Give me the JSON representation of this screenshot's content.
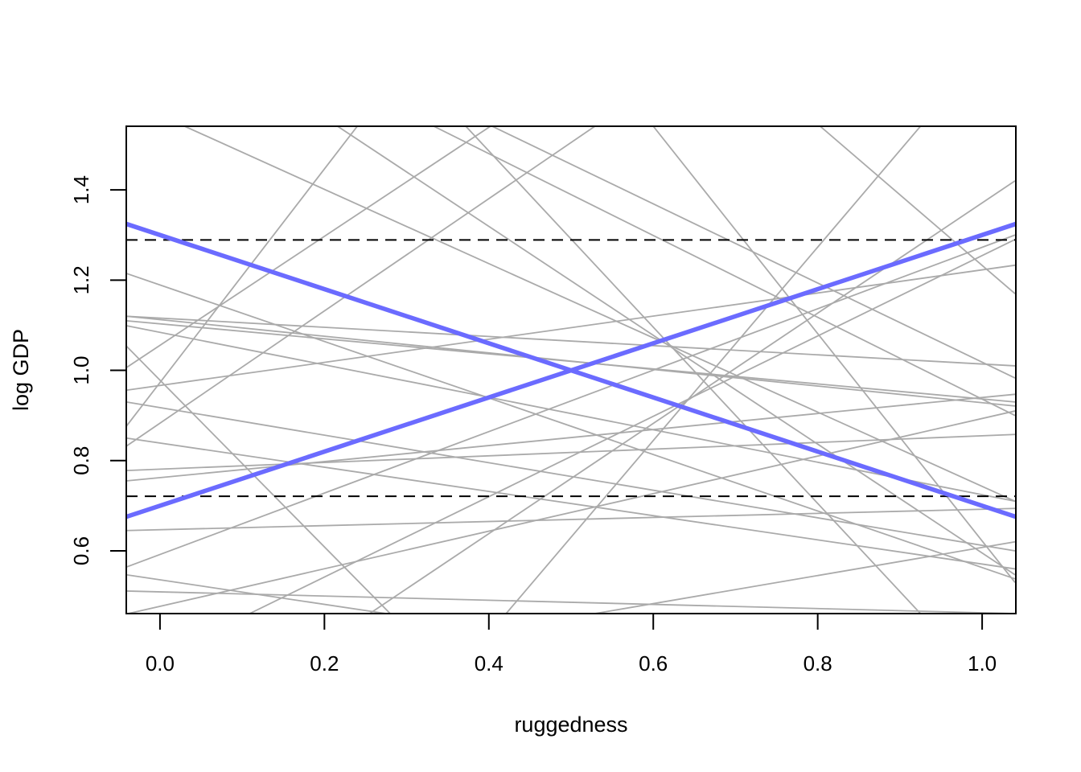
{
  "chart_data": {
    "type": "line",
    "title": "",
    "xlabel": "ruggedness",
    "ylabel": "log GDP",
    "xlim": [
      -0.041,
      1.041
    ],
    "ylim": [
      0.461,
      1.541
    ],
    "xticks": [
      "0.0",
      "0.2",
      "0.4",
      "0.6",
      "0.8",
      "1.0"
    ],
    "yticks": [
      "0.6",
      "0.8",
      "1.0",
      "1.2",
      "1.4"
    ],
    "grid": false,
    "colors": {
      "prior_lines": "#aaaaaa",
      "highlight": "#6b6bff",
      "reference": "#000000"
    },
    "prior_lines": [
      [
        -0.041,
        1.12,
        1.04,
        0.921
      ],
      [
        -0.041,
        1.12,
        1.04,
        1.01
      ],
      [
        -0.041,
        1.215,
        1.04,
        0.538
      ],
      [
        -0.041,
        0.956,
        1.04,
        1.233
      ],
      [
        -0.041,
        0.876,
        0.24,
        1.541
      ],
      [
        -0.041,
        0.832,
        0.529,
        1.541
      ],
      [
        -0.041,
        0.778,
        1.04,
        0.858
      ],
      [
        -0.041,
        0.755,
        1.04,
        0.947
      ],
      [
        -0.041,
        0.645,
        1.04,
        0.694
      ],
      [
        -0.041,
        0.564,
        1.04,
        1.3
      ],
      [
        -0.041,
        0.547,
        0.275,
        0.461
      ],
      [
        -0.041,
        0.511,
        1.04,
        0.461
      ],
      [
        -0.041,
        1.099,
        1.04,
        0.71
      ],
      [
        -0.041,
        1.054,
        0.28,
        0.461
      ],
      [
        -0.041,
        1.006,
        0.402,
        1.541
      ],
      [
        0.03,
        1.541,
        1.04,
        0.71
      ],
      [
        0.216,
        1.541,
        1.04,
        0.547
      ],
      [
        0.333,
        1.541,
        1.04,
        0.9
      ],
      [
        0.404,
        1.541,
        1.04,
        0.983
      ],
      [
        0.372,
        1.541,
        0.925,
        0.461
      ],
      [
        0.421,
        0.461,
        0.925,
        1.541
      ],
      [
        0.255,
        0.461,
        1.04,
        1.42
      ],
      [
        0.803,
        1.541,
        1.04,
        1.17
      ],
      [
        0.109,
        0.461,
        1.04,
        1.29
      ],
      [
        -0.041,
        0.85,
        1.04,
        0.56
      ],
      [
        0.529,
        0.461,
        1.04,
        0.62
      ],
      [
        -0.041,
        0.93,
        1.04,
        0.6
      ],
      [
        0.6,
        1.541,
        1.04,
        0.53
      ],
      [
        -0.041,
        0.46,
        1.04,
        0.91
      ],
      [
        -0.041,
        1.11,
        1.04,
        0.93
      ]
    ],
    "highlight_lines": [
      {
        "intercept": 1.3,
        "slope": -0.6
      },
      {
        "intercept": 0.7,
        "slope": 0.6
      }
    ],
    "reference_lines": [
      1.289,
      0.721
    ]
  }
}
